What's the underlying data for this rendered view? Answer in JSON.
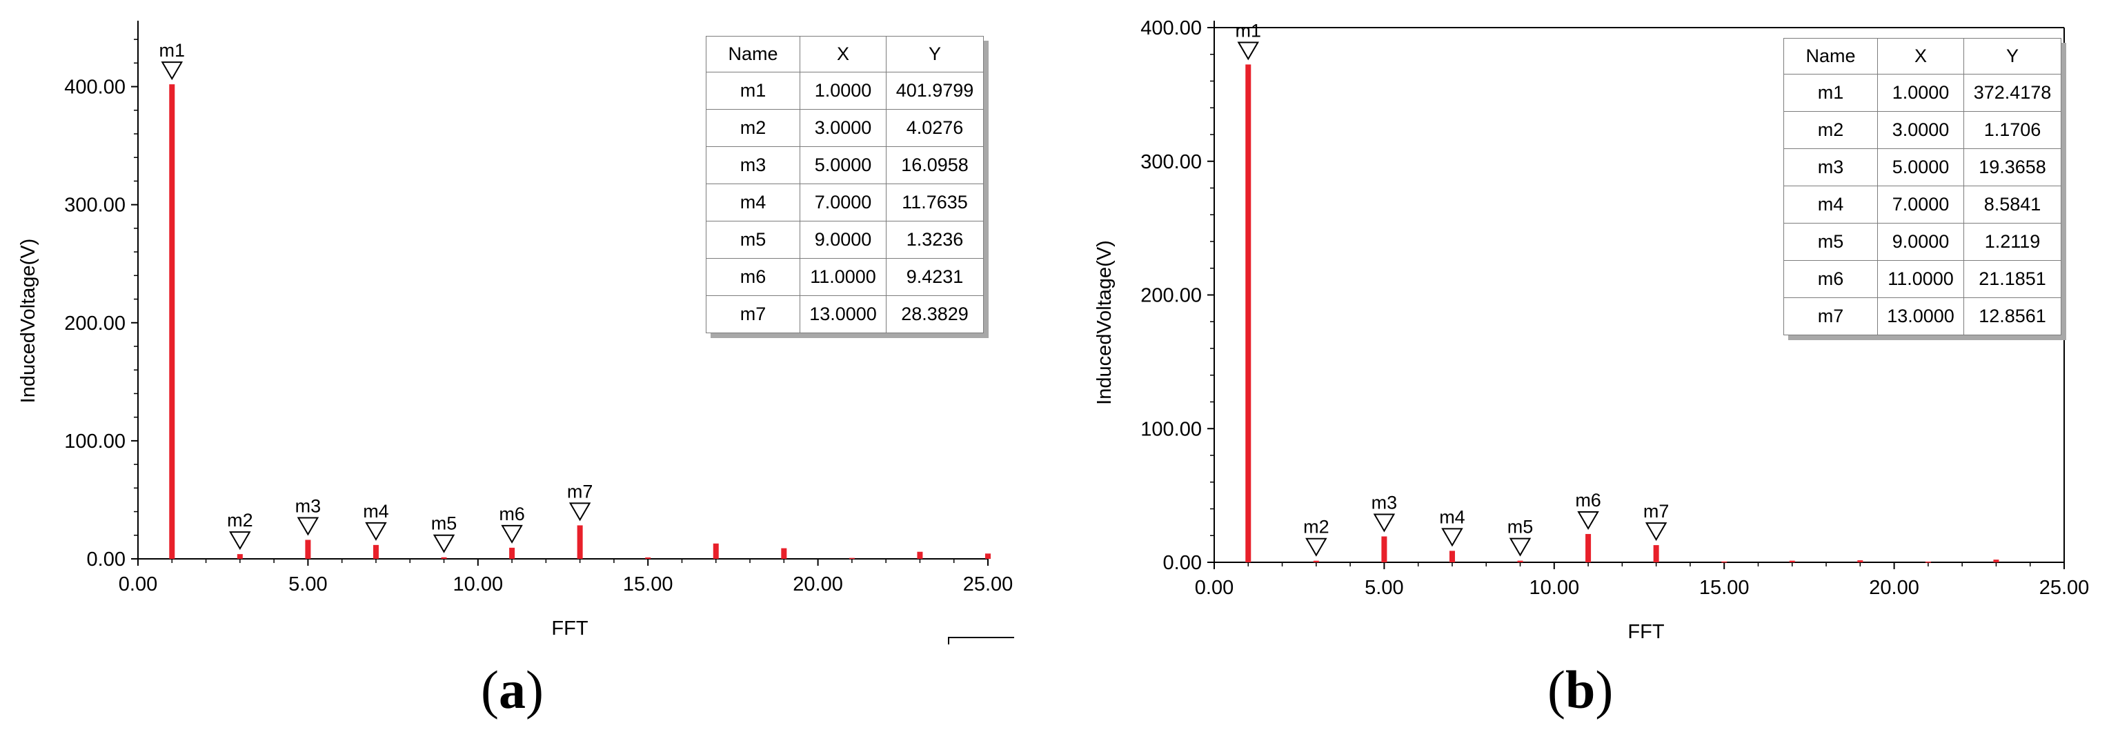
{
  "chart_data": [
    {
      "panel_label": "a",
      "type": "bar",
      "xlabel": "FFT",
      "ylabel": "InducedVoltage(V)",
      "xlim": [
        0,
        25
      ],
      "ylim": [
        0,
        450
      ],
      "x_ticks": [
        "0.00",
        "5.00",
        "10.00",
        "15.00",
        "20.00",
        "25.00"
      ],
      "y_ticks": [
        "0.00",
        "100.00",
        "200.00",
        "300.00",
        "400.00"
      ],
      "bar_color": "#e8202a",
      "x": [
        1,
        3,
        5,
        7,
        9,
        11,
        13,
        15,
        17,
        19,
        21,
        23,
        25
      ],
      "values": [
        401.9799,
        4.0276,
        16.0958,
        11.7635,
        1.3236,
        9.4231,
        28.3829,
        1.2,
        13.0,
        9.0,
        0.8,
        6.0,
        4.5
      ],
      "markers": [
        {
          "name": "m1",
          "x": "1.0000",
          "y": "401.9799"
        },
        {
          "name": "m2",
          "x": "3.0000",
          "y": "4.0276"
        },
        {
          "name": "m3",
          "x": "5.0000",
          "y": "16.0958"
        },
        {
          "name": "m4",
          "x": "7.0000",
          "y": "11.7635"
        },
        {
          "name": "m5",
          "x": "9.0000",
          "y": "1.3236"
        },
        {
          "name": "m6",
          "x": "11.0000",
          "y": "9.4231"
        },
        {
          "name": "m7",
          "x": "13.0000",
          "y": "28.3829"
        }
      ],
      "table_headers": [
        "Name",
        "X",
        "Y"
      ]
    },
    {
      "panel_label": "b",
      "type": "bar",
      "xlabel": "FFT",
      "ylabel": "InducedVoltage(V)",
      "xlim": [
        0,
        25
      ],
      "ylim": [
        0,
        400
      ],
      "x_ticks": [
        "0.00",
        "5.00",
        "10.00",
        "15.00",
        "20.00",
        "25.00"
      ],
      "y_ticks": [
        "0.00",
        "100.00",
        "200.00",
        "300.00",
        "400.00"
      ],
      "bar_color": "#e8202a",
      "x": [
        1,
        3,
        5,
        7,
        9,
        11,
        13,
        15,
        17,
        19,
        21,
        23
      ],
      "values": [
        372.4178,
        1.1706,
        19.3658,
        8.5841,
        1.2119,
        21.1851,
        12.8561,
        0.6,
        1.2,
        1.5,
        0.5,
        2.0
      ],
      "markers": [
        {
          "name": "m1",
          "x": "1.0000",
          "y": "372.4178"
        },
        {
          "name": "m2",
          "x": "3.0000",
          "y": "1.1706"
        },
        {
          "name": "m3",
          "x": "5.0000",
          "y": "19.3658"
        },
        {
          "name": "m4",
          "x": "7.0000",
          "y": "8.5841"
        },
        {
          "name": "m5",
          "x": "9.0000",
          "y": "1.2119"
        },
        {
          "name": "m6",
          "x": "11.0000",
          "y": "21.1851"
        },
        {
          "name": "m7",
          "x": "13.0000",
          "y": "12.8561"
        }
      ],
      "table_headers": [
        "Name",
        "X",
        "Y"
      ]
    }
  ]
}
